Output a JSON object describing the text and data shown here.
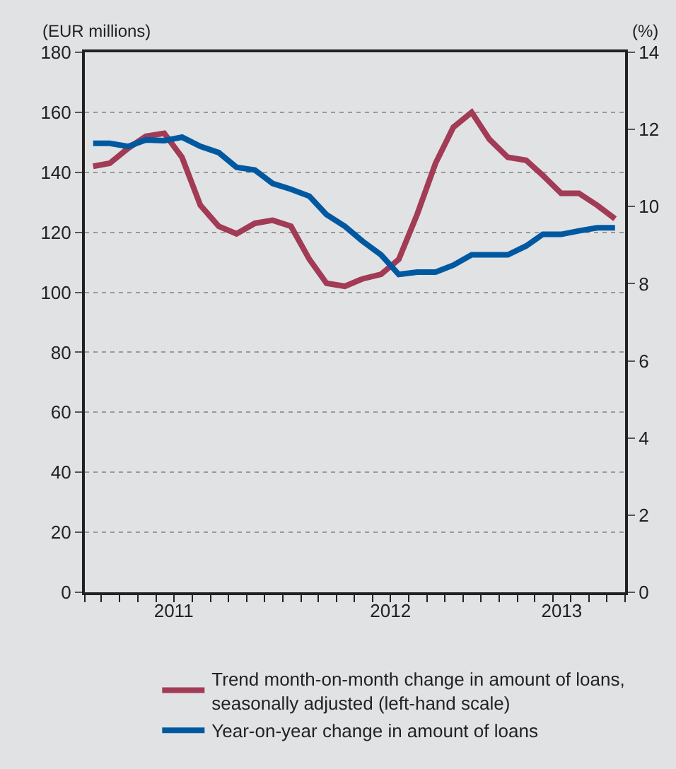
{
  "chart_data": {
    "type": "line",
    "ylabel": "(EUR millions)",
    "y2label": "(%)",
    "x": [
      "2011-02-15",
      "2011-03-15",
      "2011-04-15",
      "2011-05-15",
      "2011-06-15",
      "2011-07-15",
      "2011-08-15",
      "2011-09-15",
      "2011-10-15",
      "2011-11-15",
      "2011-12-15",
      "2012-01-15",
      "2012-02-15",
      "2012-03-15",
      "2012-04-15",
      "2012-05-15",
      "2012-06-15",
      "2012-07-15",
      "2012-08-15",
      "2012-09-15",
      "2012-10-15",
      "2012-11-15",
      "2012-12-15",
      "2013-01-15",
      "2013-02-15",
      "2013-03-15",
      "2013-04-15",
      "2013-05-15",
      "2013-06-15",
      "2013-07-15"
    ],
    "series": [
      {
        "name": "Trend month-on-month change in amount of loans, seasonally adjusted (left-hand scale)",
        "color": "#a23b55",
        "values": [
          142,
          143,
          148,
          152,
          153,
          145,
          129,
          122,
          119.5,
          123,
          124,
          122,
          111,
          103,
          102,
          104.5,
          106,
          111,
          126,
          143,
          155,
          160,
          151,
          145,
          144,
          139,
          133,
          133,
          129,
          124.5
        ]
      },
      {
        "name": "Year-on-year change in amount of loans",
        "color": "#0059a0",
        "axis": "y2",
        "values": [
          11.64,
          11.64,
          11.56,
          11.73,
          11.71,
          11.8,
          11.56,
          11.4,
          11.02,
          10.95,
          10.6,
          10.45,
          10.27,
          9.79,
          9.49,
          9.1,
          8.75,
          8.24,
          8.3,
          8.3,
          8.48,
          8.75,
          8.75,
          8.75,
          8.98,
          9.28,
          9.28,
          9.37,
          9.45,
          9.45
        ]
      }
    ],
    "xlim": [
      "2011-02-01",
      "2013-08-01"
    ],
    "xticks": [
      {
        "value": "2011-07-01",
        "label": "2011"
      },
      {
        "value": "2012-07-01",
        "label": "2012"
      },
      {
        "value": "2013-04-16",
        "label": "2013"
      },
      {
        "value": "2011-02-01",
        "label": null
      },
      {
        "value": "2011-03-01",
        "label": null
      },
      {
        "value": "2011-04-01",
        "label": null
      },
      {
        "value": "2011-05-01",
        "label": null
      },
      {
        "value": "2011-06-01",
        "label": null
      },
      {
        "value": "2011-07-01",
        "label": null
      },
      {
        "value": "2011-08-01",
        "label": null
      },
      {
        "value": "2011-09-01",
        "label": null
      },
      {
        "value": "2011-10-01",
        "label": null
      },
      {
        "value": "2011-11-01",
        "label": null
      },
      {
        "value": "2011-12-01",
        "label": null
      },
      {
        "value": "2012-01-01",
        "label": null
      },
      {
        "value": "2012-02-01",
        "label": null
      },
      {
        "value": "2012-03-01",
        "label": null
      },
      {
        "value": "2012-04-01",
        "label": null
      },
      {
        "value": "2012-05-01",
        "label": null
      },
      {
        "value": "2012-06-01",
        "label": null
      },
      {
        "value": "2012-07-01",
        "label": null
      },
      {
        "value": "2012-08-01",
        "label": null
      },
      {
        "value": "2012-09-01",
        "label": null
      },
      {
        "value": "2012-10-01",
        "label": null
      },
      {
        "value": "2012-11-01",
        "label": null
      },
      {
        "value": "2012-12-01",
        "label": null
      },
      {
        "value": "2013-01-01",
        "label": null
      },
      {
        "value": "2013-02-01",
        "label": null
      },
      {
        "value": "2013-03-01",
        "label": null
      },
      {
        "value": "2013-04-01",
        "label": null
      },
      {
        "value": "2013-05-01",
        "label": null
      },
      {
        "value": "2013-06-01",
        "label": null
      },
      {
        "value": "2013-07-01",
        "label": null
      },
      {
        "value": "2013-08-01",
        "label": null
      }
    ],
    "ylim": [
      0,
      180
    ],
    "yticks": [
      0,
      20,
      40,
      60,
      80,
      100,
      120,
      140,
      160,
      180
    ],
    "y2lim": [
      0,
      14
    ],
    "y2ticks": [
      0,
      2,
      4,
      6,
      8,
      10,
      12,
      14
    ],
    "grid": "y",
    "legend": "bottom",
    "marker": "none",
    "line_style": "solid"
  }
}
